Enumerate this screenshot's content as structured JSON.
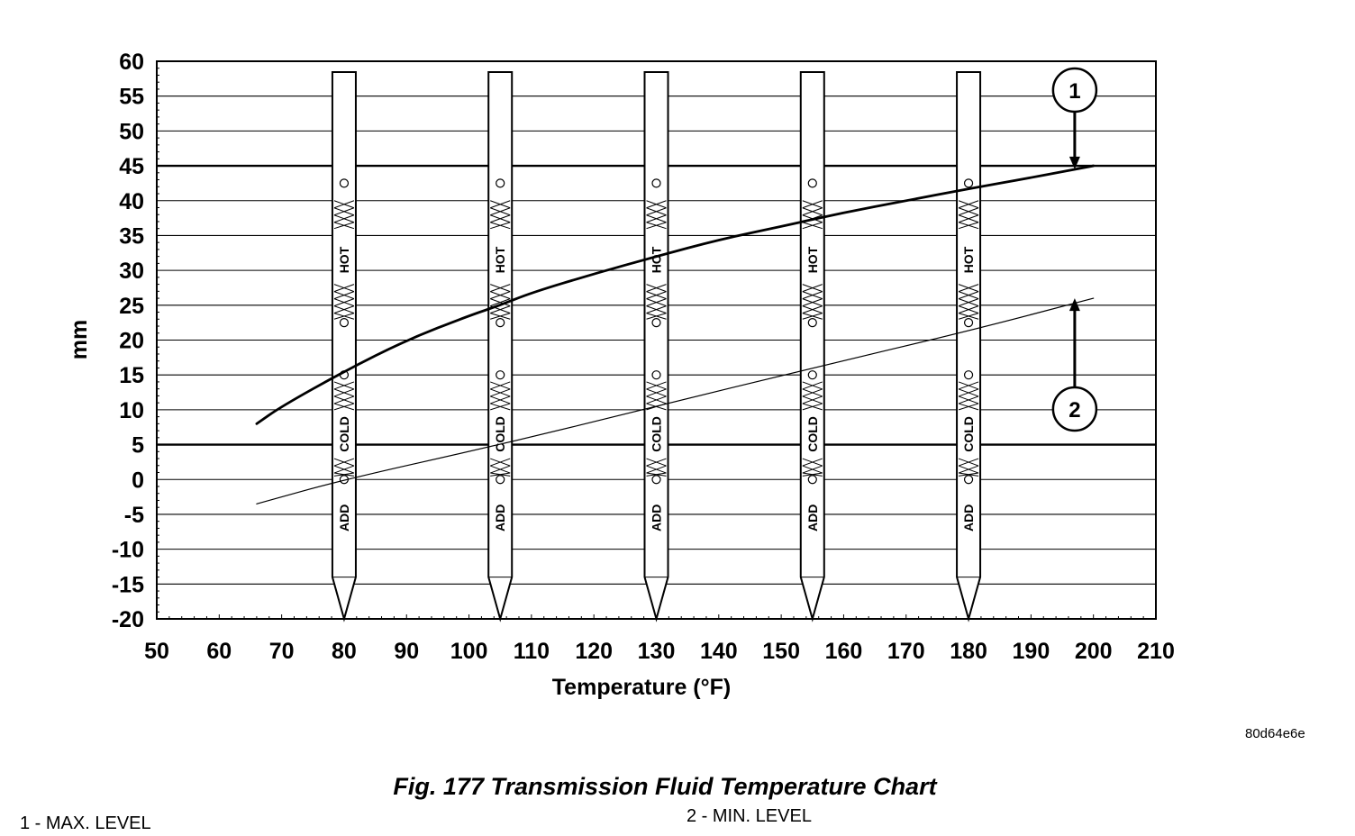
{
  "chart_data": {
    "type": "line",
    "xlabel": "Temperature (°F)",
    "ylabel": "mm",
    "xlim": [
      50,
      210
    ],
    "ylim": [
      -20,
      60
    ],
    "x_ticks": [
      50,
      60,
      70,
      80,
      90,
      100,
      110,
      120,
      130,
      140,
      150,
      160,
      170,
      180,
      190,
      200,
      210
    ],
    "y_ticks": [
      60,
      55,
      50,
      45,
      40,
      35,
      30,
      25,
      20,
      15,
      10,
      5,
      0,
      -5,
      -10,
      -15,
      -20
    ],
    "emphasized_y_lines": [
      45,
      5
    ],
    "grid": "horizontal",
    "series": [
      {
        "name": "1",
        "x": [
          66,
          70,
          80,
          90,
          100,
          105,
          110,
          120,
          130,
          140,
          150,
          160,
          170,
          180,
          190,
          200
        ],
        "values": [
          8,
          10.5,
          15.5,
          20,
          23.5,
          25,
          26.8,
          29.5,
          32,
          34.4,
          36.3,
          38.3,
          40,
          41.7,
          43.3,
          45
        ]
      },
      {
        "name": "2",
        "x": [
          66,
          80,
          105,
          130,
          155,
          180,
          200
        ],
        "values": [
          -3.5,
          0,
          5,
          10.5,
          16,
          21.3,
          26
        ]
      }
    ],
    "dipsticks": {
      "x": [
        80,
        105,
        130,
        155,
        180
      ],
      "labels": {
        "hot": "HOT",
        "cold": "COLD",
        "add": "ADD"
      }
    },
    "callouts": [
      {
        "number": "1",
        "x": 197,
        "y": 44.5
      },
      {
        "number": "2",
        "x": 197,
        "y": 26
      }
    ]
  },
  "figure": {
    "code": "80d64e6e",
    "caption": "Fig. 177 Transmission Fluid Temperature Chart",
    "legend_1": "1 - MAX. LEVEL",
    "legend_2": "2 - MIN. LEVEL"
  },
  "colors": {
    "line": "#000000",
    "background": "#ffffff"
  }
}
